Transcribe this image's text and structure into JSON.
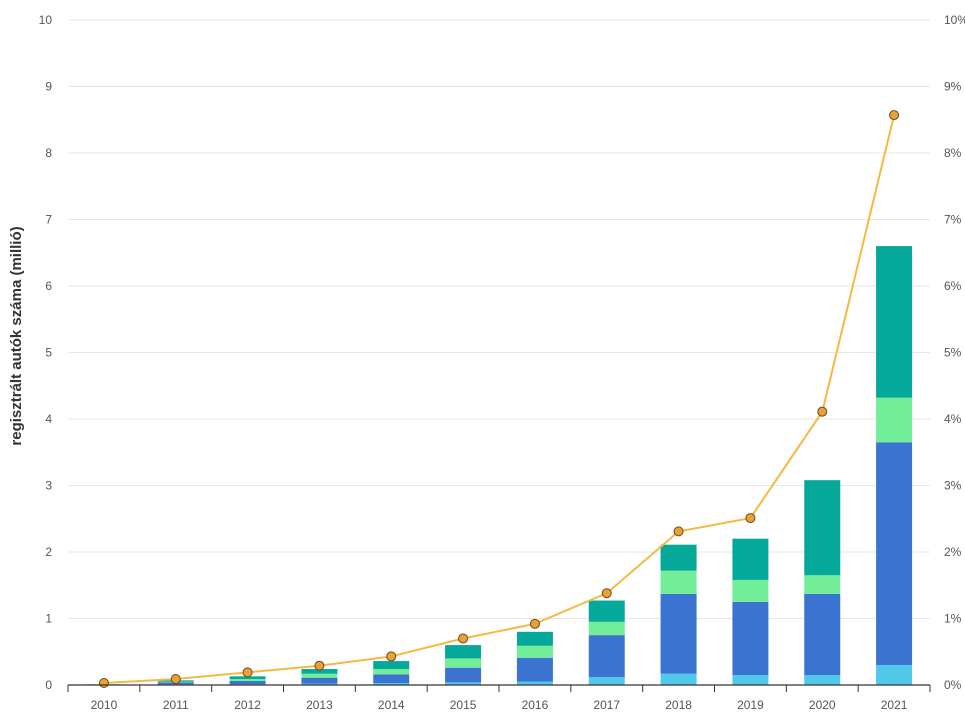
{
  "chart_data": {
    "type": "bar",
    "categories": [
      "2010",
      "2011",
      "2012",
      "2013",
      "2014",
      "2015",
      "2016",
      "2017",
      "2018",
      "2019",
      "2020",
      "2021"
    ],
    "ylabel": "regisztrált autók száma (millió)",
    "ylim": [
      0,
      10
    ],
    "y_ticks": [
      "0",
      "1",
      "2",
      "3",
      "4",
      "5",
      "6",
      "7",
      "8",
      "9",
      "10"
    ],
    "y2lim": [
      0,
      10
    ],
    "y2_ticks": [
      "0%",
      "1%",
      "2%",
      "3%",
      "4%",
      "5%",
      "6%",
      "7%",
      "8%",
      "9%",
      "10%"
    ],
    "grid": true,
    "stacked": true,
    "series": [
      {
        "color": "#4fc8ea",
        "values": [
          0.0,
          0.01,
          0.01,
          0.02,
          0.03,
          0.04,
          0.05,
          0.12,
          0.17,
          0.15,
          0.15,
          0.3
        ]
      },
      {
        "color": "#3b73d1",
        "values": [
          0.0,
          0.03,
          0.05,
          0.09,
          0.13,
          0.22,
          0.36,
          0.63,
          1.2,
          1.1,
          1.22,
          3.35
        ]
      },
      {
        "color": "#72ed98",
        "values": [
          0.0,
          0.01,
          0.03,
          0.06,
          0.08,
          0.14,
          0.18,
          0.2,
          0.35,
          0.33,
          0.28,
          0.67
        ]
      },
      {
        "color": "#06a89a",
        "values": [
          0.01,
          0.02,
          0.04,
          0.07,
          0.12,
          0.2,
          0.21,
          0.32,
          0.39,
          0.62,
          1.43,
          2.28
        ]
      }
    ],
    "line": {
      "axis": "right",
      "color": "#f4b942",
      "marker_color": "#e8a13a",
      "values": [
        0.03,
        0.09,
        0.19,
        0.29,
        0.43,
        0.7,
        0.92,
        1.38,
        2.31,
        2.51,
        4.11,
        8.57
      ]
    }
  }
}
